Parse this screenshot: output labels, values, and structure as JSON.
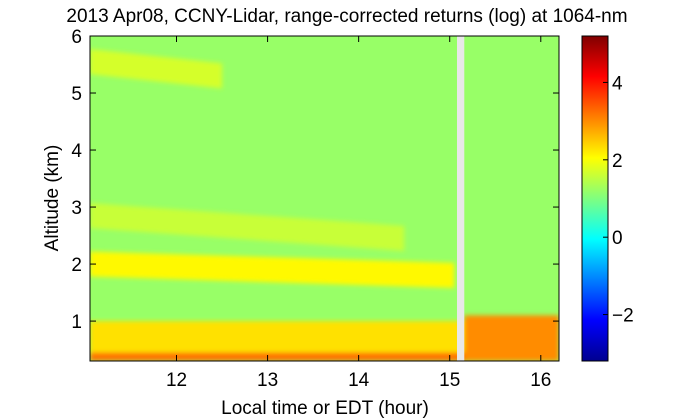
{
  "chart_data": {
    "type": "heatmap",
    "title": "2013 Apr08, CCNY-Lidar, range-corrected returns (log) at 1064-nm",
    "xlabel": "Local time or EDT (hour)",
    "ylabel": "Altitude (km)",
    "xlim": [
      11.05,
      16.2
    ],
    "ylim": [
      0.3,
      6
    ],
    "x_ticks": [
      "12",
      "13",
      "14",
      "15",
      "16"
    ],
    "y_ticks": [
      "1",
      "2",
      "3",
      "4",
      "5",
      "6"
    ],
    "colorbar": {
      "range": [
        -3.2,
        5.2
      ],
      "ticks": [
        "-2",
        "0",
        "2",
        "4"
      ],
      "colormap": "jet"
    },
    "data_gap": {
      "x_start": 15.08,
      "x_end": 15.16
    },
    "layers": [
      {
        "name": "surface layer",
        "x_range": [
          11.05,
          16.2
        ],
        "alt_range": [
          0.3,
          0.45
        ],
        "value": 3.2
      },
      {
        "name": "boundary layer",
        "x_range": [
          11.05,
          16.2
        ],
        "alt_range": [
          0.45,
          1.0
        ],
        "value": 2.3
      },
      {
        "name": "low aerosol band",
        "x_start": 11.05,
        "x_end": 15.05,
        "alt_start": 2.0,
        "alt_end": 1.8,
        "value": 2.1
      },
      {
        "name": "mid aerosol band",
        "x_start": 11.05,
        "x_end": 14.5,
        "alt_start": 2.85,
        "alt_end": 2.45,
        "value": 1.6
      },
      {
        "name": "upper band",
        "x_start": 11.05,
        "x_end": 12.5,
        "alt_start": 5.55,
        "alt_end": 5.3,
        "value": 1.7
      },
      {
        "name": "post-gap boundary layer",
        "x_range": [
          15.16,
          16.2
        ],
        "alt_range": [
          0.3,
          1.1
        ],
        "value": 3.0
      }
    ],
    "background_value": 1.2
  }
}
